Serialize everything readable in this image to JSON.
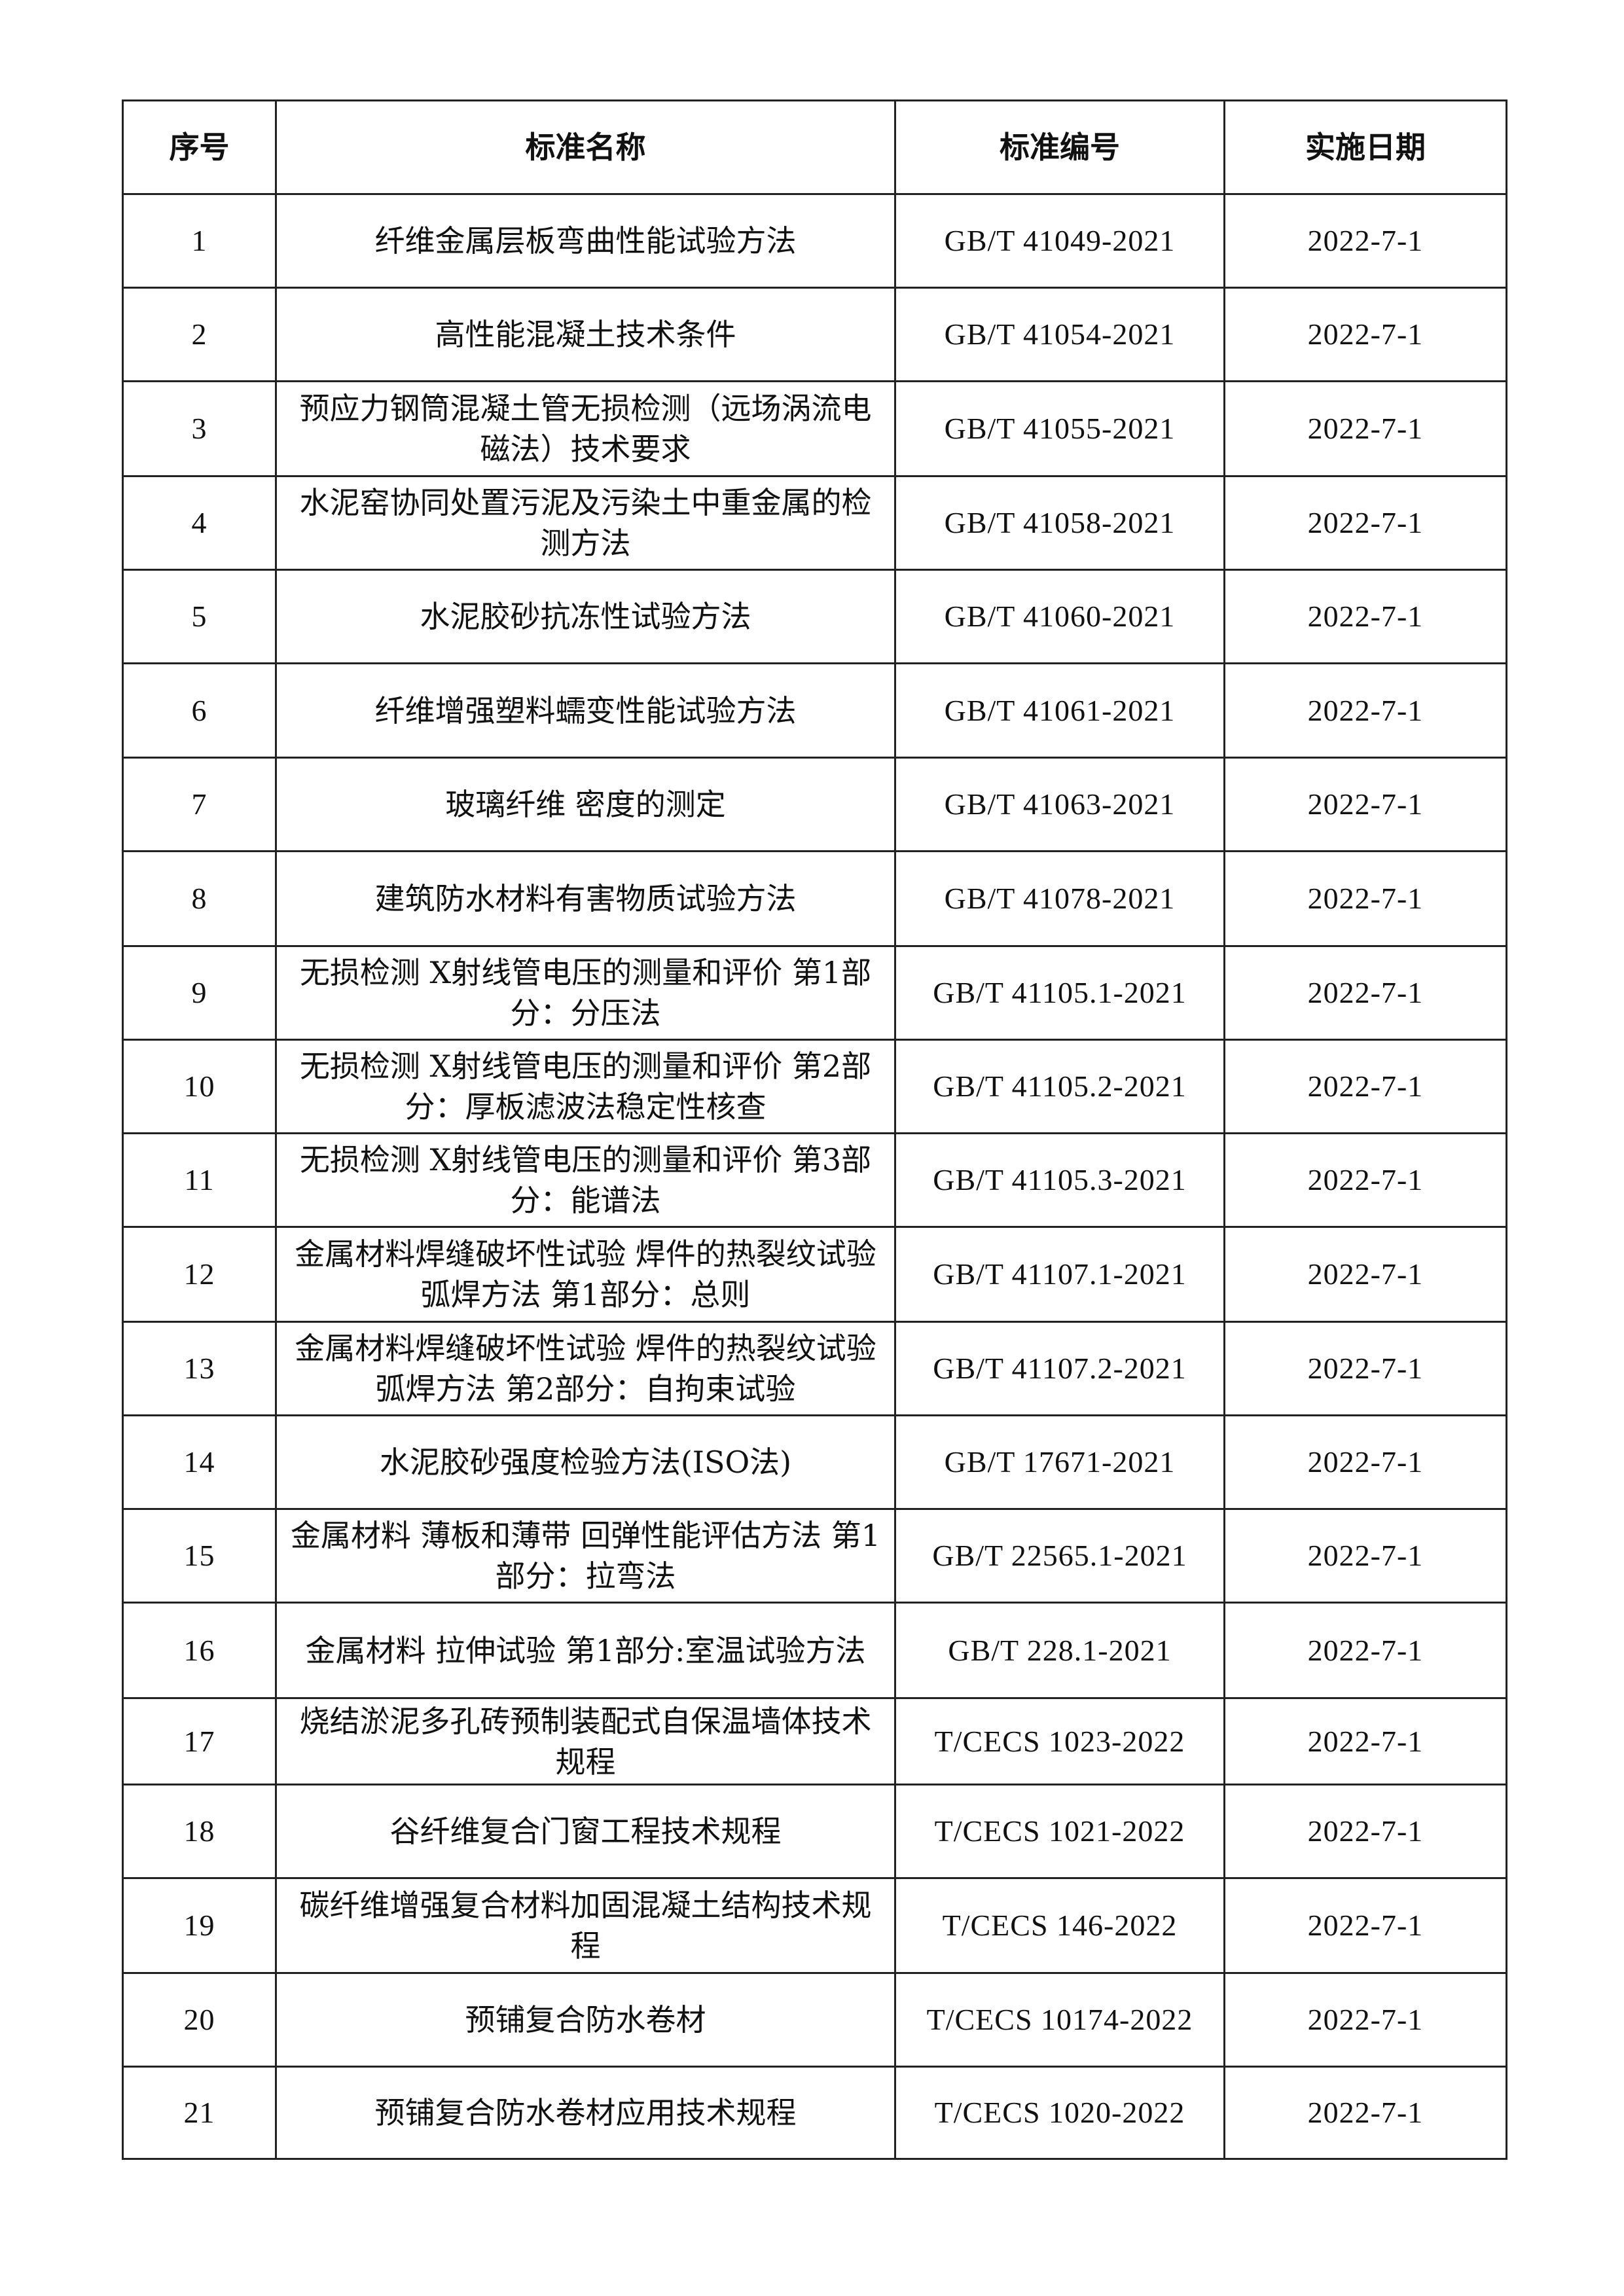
{
  "table": {
    "headers": [
      "序号",
      "标准名称",
      "标准编号",
      "实施日期"
    ],
    "rows": [
      {
        "no": "1",
        "name": "纤维金属层板弯曲性能试验方法",
        "code": "GB/T 41049-2021",
        "date": "2022-7-1"
      },
      {
        "no": "2",
        "name": "高性能混凝土技术条件",
        "code": "GB/T 41054-2021",
        "date": "2022-7-1"
      },
      {
        "no": "3",
        "name": "预应力钢筒混凝土管无损检测（远场涡流电磁法）技术要求",
        "code": "GB/T 41055-2021",
        "date": "2022-7-1"
      },
      {
        "no": "4",
        "name": "水泥窑协同处置污泥及污染土中重金属的检测方法",
        "code": "GB/T 41058-2021",
        "date": "2022-7-1"
      },
      {
        "no": "5",
        "name": "水泥胶砂抗冻性试验方法",
        "code": "GB/T 41060-2021",
        "date": "2022-7-1"
      },
      {
        "no": "6",
        "name": "纤维增强塑料蠕变性能试验方法",
        "code": "GB/T 41061-2021",
        "date": "2022-7-1"
      },
      {
        "no": "7",
        "name": "玻璃纤维 密度的测定",
        "code": "GB/T 41063-2021",
        "date": "2022-7-1"
      },
      {
        "no": "8",
        "name": "建筑防水材料有害物质试验方法",
        "code": "GB/T 41078-2021",
        "date": "2022-7-1"
      },
      {
        "no": "9",
        "name": "无损检测 X射线管电压的测量和评价 第1部分：分压法",
        "code": "GB/T 41105.1-2021",
        "date": "2022-7-1"
      },
      {
        "no": "10",
        "name": "无损检测 X射线管电压的测量和评价 第2部分：厚板滤波法稳定性核查",
        "code": "GB/T 41105.2-2021",
        "date": "2022-7-1"
      },
      {
        "no": "11",
        "name": "无损检测 X射线管电压的测量和评价 第3部分：能谱法",
        "code": "GB/T 41105.3-2021",
        "date": "2022-7-1"
      },
      {
        "no": "12",
        "name": "金属材料焊缝破坏性试验 焊件的热裂纹试验 弧焊方法 第1部分：总则",
        "code": "GB/T 41107.1-2021",
        "date": "2022-7-1"
      },
      {
        "no": "13",
        "name": "金属材料焊缝破坏性试验 焊件的热裂纹试验 弧焊方法 第2部分：自拘束试验",
        "code": "GB/T 41107.2-2021",
        "date": "2022-7-1"
      },
      {
        "no": "14",
        "name": "水泥胶砂强度检验方法(ISO法)",
        "code": "GB/T 17671-2021",
        "date": "2022-7-1"
      },
      {
        "no": "15",
        "name": "金属材料 薄板和薄带 回弹性能评估方法 第1部分：拉弯法",
        "code": "GB/T 22565.1-2021",
        "date": "2022-7-1"
      },
      {
        "no": "16",
        "name": "金属材料 拉伸试验 第1部分:室温试验方法",
        "code": "GB/T 228.1-2021",
        "date": "2022-7-1"
      },
      {
        "no": "17",
        "name": "烧结淤泥多孔砖预制装配式自保温墙体技术规程",
        "code": "T/CECS 1023-2022",
        "date": "2022-7-1"
      },
      {
        "no": "18",
        "name": "谷纤维复合门窗工程技术规程",
        "code": "T/CECS 1021-2022",
        "date": "2022-7-1"
      },
      {
        "no": "19",
        "name": "碳纤维增强复合材料加固混凝土结构技术规程",
        "code": "T/CECS 146-2022",
        "date": "2022-7-1"
      },
      {
        "no": "20",
        "name": "预铺复合防水卷材",
        "code": "T/CECS 10174-2022",
        "date": "2022-7-1"
      },
      {
        "no": "21",
        "name": "预铺复合防水卷材应用技术规程",
        "code": "T/CECS 1020-2022",
        "date": "2022-7-1"
      }
    ]
  }
}
